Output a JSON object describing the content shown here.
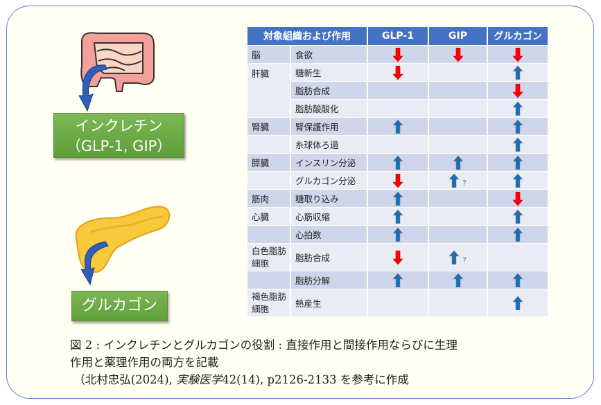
{
  "colors": {
    "frame_border": "#5b7fc7",
    "header": "#4472c4",
    "row_dark": "#cfd5ea",
    "row_light": "#e9ebf5",
    "up_arrow": "#0e70c0",
    "down_arrow": "#ff0000",
    "label_box": "#6aaa45"
  },
  "left": {
    "incretin_line1": "インクレチン",
    "incretin_line2": "（GLP-1, GIP）",
    "glucagon": "グルカゴン"
  },
  "table": {
    "headers": [
      "対象組織および作用",
      "GLP-1",
      "GIP",
      "グルカゴン"
    ],
    "rows": [
      {
        "organ": "脳",
        "action": "食欲",
        "glp1": "down",
        "gip": "down",
        "glucagon": "down"
      },
      {
        "organ": "肝臓",
        "action": "糖新生",
        "glp1": "down",
        "gip": "",
        "glucagon": "up"
      },
      {
        "organ": "",
        "action": "脂肪合成",
        "glp1": "",
        "gip": "",
        "glucagon": "down"
      },
      {
        "organ": "",
        "action": "脂肪酸酸化",
        "glp1": "",
        "gip": "",
        "glucagon": "up"
      },
      {
        "organ": "腎臓",
        "action": "腎保護作用",
        "glp1": "up",
        "gip": "",
        "glucagon": "up"
      },
      {
        "organ": "",
        "action": "糸球体ろ過",
        "glp1": "",
        "gip": "",
        "glucagon": "up"
      },
      {
        "organ": "膵臓",
        "action": "インスリン分泌",
        "glp1": "up",
        "gip": "up",
        "glucagon": "up"
      },
      {
        "organ": "",
        "action": "グルカゴン分泌",
        "glp1": "down",
        "gip": "up?",
        "glucagon": "up"
      },
      {
        "organ": "筋肉",
        "action": "糖取り込み",
        "glp1": "up",
        "gip": "",
        "glucagon": "down"
      },
      {
        "organ": "心臓",
        "action": "心筋収縮",
        "glp1": "up",
        "gip": "",
        "glucagon": "up"
      },
      {
        "organ": "",
        "action": "心拍数",
        "glp1": "up",
        "gip": "",
        "glucagon": "up"
      },
      {
        "organ": "白色脂肪細胞",
        "action": "脂肪合成",
        "glp1": "down",
        "gip": "up?",
        "glucagon": ""
      },
      {
        "organ": "",
        "action": "脂肪分解",
        "glp1": "up",
        "gip": "up",
        "glucagon": "up"
      },
      {
        "organ": "褐色脂肪細胞",
        "action": "熱産生",
        "glp1": "",
        "gip": "",
        "glucagon": "up"
      }
    ],
    "uncertain_mark": "?"
  },
  "caption": {
    "line1": "図 2 : インクレチンとグルカゴンの役割 : 直接作用と間接作用ならびに生理",
    "line2": "作用と薬理作用の両方を記載",
    "line3_pre": "（北村忠弘(2024), ",
    "line3_journal": "実験医学",
    "line3_post": "42(14), p2126-2133 を参考に作成"
  }
}
